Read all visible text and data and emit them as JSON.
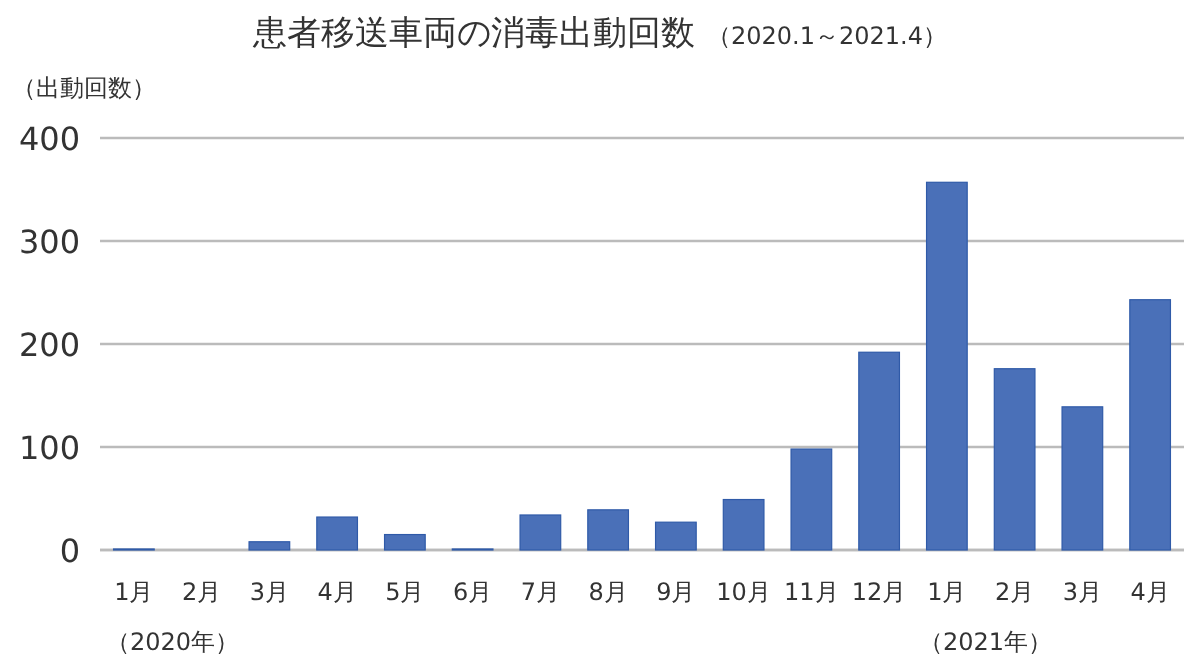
{
  "chart_data": {
    "type": "bar",
    "title": "患者移送車両の消毒出動回数",
    "subtitle": "（2020.1～2021.4）",
    "ylabel": "（出動回数）",
    "categories": [
      "1月",
      "2月",
      "3月",
      "4月",
      "5月",
      "6月",
      "7月",
      "8月",
      "9月",
      "10月",
      "11月",
      "12月",
      "1月",
      "2月",
      "3月",
      "4月"
    ],
    "values": [
      1,
      0,
      8,
      32,
      15,
      1,
      34,
      39,
      27,
      49,
      98,
      192,
      357,
      176,
      139,
      243
    ],
    "color": "#4a70b8",
    "ylim": [
      0,
      400
    ],
    "yticks": [
      0,
      100,
      200,
      300,
      400
    ],
    "grid": "y",
    "annotations": [
      "（2020年）",
      "（2021年）"
    ]
  }
}
